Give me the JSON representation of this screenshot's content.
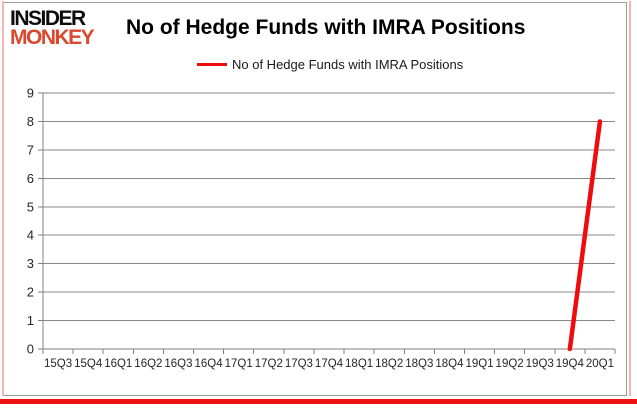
{
  "logo": {
    "line1": "INSIDER",
    "line2": "MONKEY"
  },
  "header": {
    "title": "No of Hedge Funds with IMRA Positions"
  },
  "chart_data": {
    "type": "line",
    "title": "No of Hedge Funds with IMRA Positions",
    "legend_label": "No of Hedge Funds with IMRA Positions",
    "legend_position": "top-center",
    "xlabel": "",
    "ylabel": "",
    "grid": true,
    "ylim": [
      0,
      9
    ],
    "ytick_step": 1,
    "yticks": [
      0,
      1,
      2,
      3,
      4,
      5,
      6,
      7,
      8,
      9
    ],
    "categories": [
      "15Q3",
      "15Q4",
      "16Q1",
      "16Q2",
      "16Q3",
      "16Q4",
      "17Q1",
      "17Q2",
      "17Q3",
      "17Q4",
      "18Q1",
      "18Q2",
      "18Q3",
      "18Q4",
      "19Q1",
      "19Q2",
      "19Q3",
      "19Q4",
      "20Q1"
    ],
    "series": [
      {
        "name": "No of Hedge Funds with IMRA Positions",
        "color": "#ee0c0c",
        "values": [
          null,
          null,
          null,
          null,
          null,
          null,
          null,
          null,
          null,
          null,
          null,
          null,
          null,
          null,
          null,
          null,
          null,
          0,
          8
        ]
      }
    ]
  },
  "colors": {
    "line_red": "#ee0c0c",
    "logo_red": "#d8492e",
    "grid_gray": "#878787",
    "axis_gray": "#808080",
    "tick_label": "#262626",
    "frame_gray": "#9c9c9c",
    "border_pink": "#f2b5b1",
    "bottom_bar_red": "#ee1111"
  }
}
